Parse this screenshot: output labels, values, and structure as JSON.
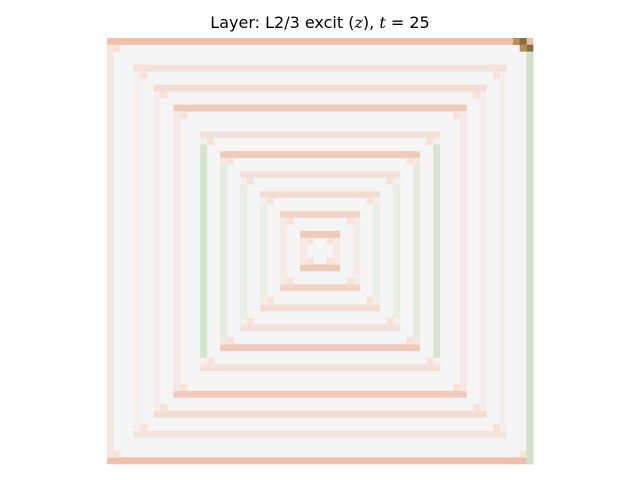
{
  "chart_data": {
    "type": "heatmap",
    "title": {
      "prefix": "Layer: L2/3 excit (",
      "var": "z",
      "mid": "), ",
      "tvar": "t",
      "eq": " = ",
      "tval": "25"
    },
    "axes": "off",
    "grid": false,
    "legend": "none",
    "resolution": [
      64,
      64
    ],
    "colormap": {
      "background": "#f5f5f5",
      "warm": "#f0c0aa",
      "warm_light": "#f7e0d4",
      "cool": "#cfe3c8",
      "cool_light": "#e5efdf",
      "corner_dark": "#8a6e3c",
      "corner_mid": "#b48e5e"
    },
    "rings": [
      {
        "inset": 0,
        "hue": "warm",
        "strength": 1.0
      },
      {
        "inset": 4,
        "hue": "warm",
        "strength": 0.35
      },
      {
        "inset": 7,
        "hue": "warm",
        "strength": 0.45
      },
      {
        "inset": 10,
        "hue": "warm",
        "strength": 0.8
      },
      {
        "inset": 14,
        "hue": "warm",
        "strength": 0.35
      },
      {
        "inset": 17,
        "hue": "warm",
        "strength": 0.8
      },
      {
        "inset": 20,
        "hue": "warm",
        "strength": 0.35
      },
      {
        "inset": 23,
        "hue": "warm",
        "strength": 0.45
      },
      {
        "inset": 26,
        "hue": "warm",
        "strength": 0.6
      },
      {
        "inset": 29,
        "hue": "warm",
        "strength": 0.8
      }
    ],
    "side_bands": [
      {
        "inset": 14,
        "hue": "cool",
        "strength": 0.9
      },
      {
        "inset": 17,
        "hue": "cool",
        "strength": 0.5
      },
      {
        "inset": 20,
        "hue": "cool",
        "strength": 0.35
      },
      {
        "inset": 23,
        "hue": "cool",
        "strength": 0.35
      }
    ],
    "right_edge": {
      "hue": "cool",
      "strength": 1.0
    }
  }
}
